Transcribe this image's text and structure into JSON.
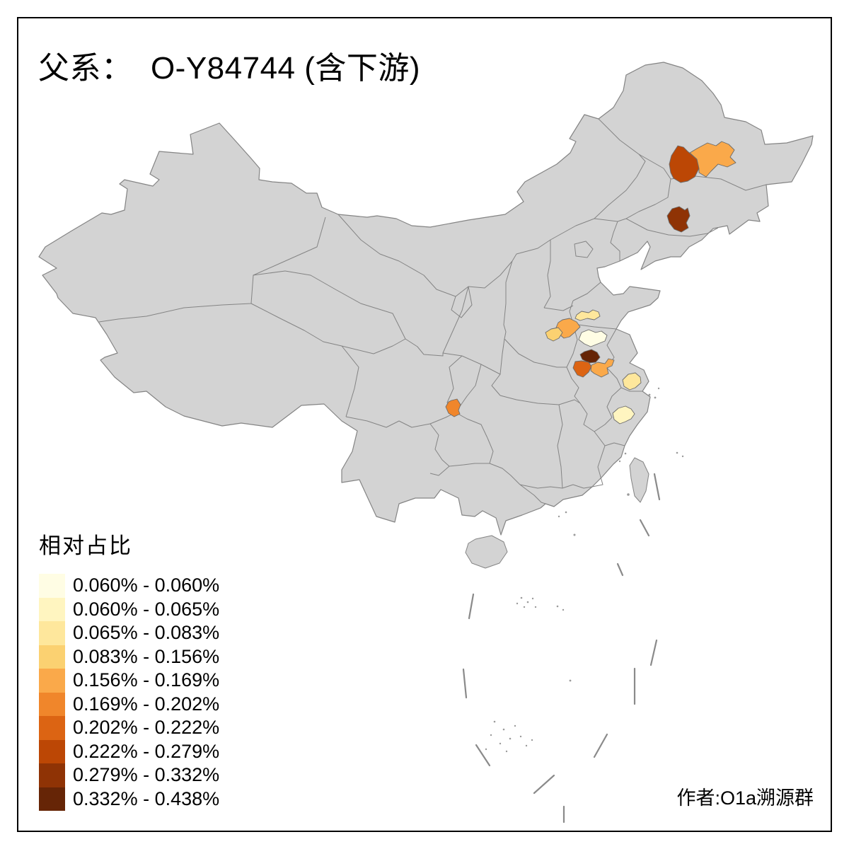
{
  "title": "父系：  O-Y84744 (含下游)",
  "attribution": "作者:O1a溯源群",
  "legend": {
    "title": "相对占比",
    "classes": [
      {
        "label": "0.060% - 0.060%",
        "color": "#FFFDE4"
      },
      {
        "label": "0.060% - 0.065%",
        "color": "#FFF5C0"
      },
      {
        "label": "0.065% - 0.083%",
        "color": "#FEE79C"
      },
      {
        "label": "0.083% - 0.156%",
        "color": "#FBD171"
      },
      {
        "label": "0.156% - 0.169%",
        "color": "#FAA94A"
      },
      {
        "label": "0.169% - 0.202%",
        "color": "#F0862B"
      },
      {
        "label": "0.202% - 0.222%",
        "color": "#DC6413"
      },
      {
        "label": "0.222% - 0.279%",
        "color": "#BC4705"
      },
      {
        "label": "0.279% - 0.332%",
        "color": "#8F3305"
      },
      {
        "label": "0.332% - 0.438%",
        "color": "#662506"
      }
    ]
  },
  "map": {
    "base_fill": "#D3D3D3",
    "boundary_color": "#848484",
    "background": "#FFFFFF",
    "regions": [
      {
        "id": "northeast-inner-mongolia-west",
        "class_index": 7
      },
      {
        "id": "northeast-east",
        "class_index": 4
      },
      {
        "id": "northeast-jilin",
        "class_index": 8
      },
      {
        "id": "north-china-plain-north",
        "class_index": 2
      },
      {
        "id": "central-plain-northwest",
        "class_index": 4
      },
      {
        "id": "central-plain-west-small",
        "class_index": 3
      },
      {
        "id": "central-plain-center-cream",
        "class_index": 0
      },
      {
        "id": "central-plain-dark-brown",
        "class_index": 9
      },
      {
        "id": "central-plain-south-left",
        "class_index": 6
      },
      {
        "id": "central-plain-south-right",
        "class_index": 4
      },
      {
        "id": "southwest-chongqing-area",
        "class_index": 5
      },
      {
        "id": "east-south-jiangsu",
        "class_index": 2
      },
      {
        "id": "east-zhejiang",
        "class_index": 1
      }
    ]
  },
  "chart_data": {
    "type": "choropleth",
    "title": "父系：  O-Y84744 (含下游)",
    "legend_title": "相对占比",
    "value_range": [
      "0.060%",
      "0.438%"
    ],
    "classes": [
      "0.060% - 0.060%",
      "0.060% - 0.065%",
      "0.065% - 0.083%",
      "0.083% - 0.156%",
      "0.156% - 0.169%",
      "0.169% - 0.202%",
      "0.202% - 0.222%",
      "0.222% - 0.279%",
      "0.279% - 0.332%",
      "0.332% - 0.438%"
    ],
    "palette": [
      "#FFFDE4",
      "#FFF5C0",
      "#FEE79C",
      "#FBD171",
      "#FAA94A",
      "#F0862B",
      "#DC6413",
      "#BC4705",
      "#8F3305",
      "#662506"
    ],
    "regions": [
      {
        "location": "northeast-inner-mongolia-west",
        "class": "0.222% - 0.279%"
      },
      {
        "location": "northeast-east",
        "class": "0.156% - 0.169%"
      },
      {
        "location": "northeast-jilin",
        "class": "0.279% - 0.332%"
      },
      {
        "location": "north-china-plain-north",
        "class": "0.065% - 0.083%"
      },
      {
        "location": "central-plain-northwest",
        "class": "0.156% - 0.169%"
      },
      {
        "location": "central-plain-west-small",
        "class": "0.083% - 0.156%"
      },
      {
        "location": "central-plain-center-cream",
        "class": "0.060% - 0.060%"
      },
      {
        "location": "central-plain-dark-brown",
        "class": "0.332% - 0.438%"
      },
      {
        "location": "central-plain-south-left",
        "class": "0.202% - 0.222%"
      },
      {
        "location": "central-plain-south-right",
        "class": "0.156% - 0.169%"
      },
      {
        "location": "southwest-chongqing-area",
        "class": "0.169% - 0.202%"
      },
      {
        "location": "east-south-jiangsu",
        "class": "0.065% - 0.083%"
      },
      {
        "location": "east-zhejiang",
        "class": "0.060% - 0.065%"
      }
    ]
  }
}
